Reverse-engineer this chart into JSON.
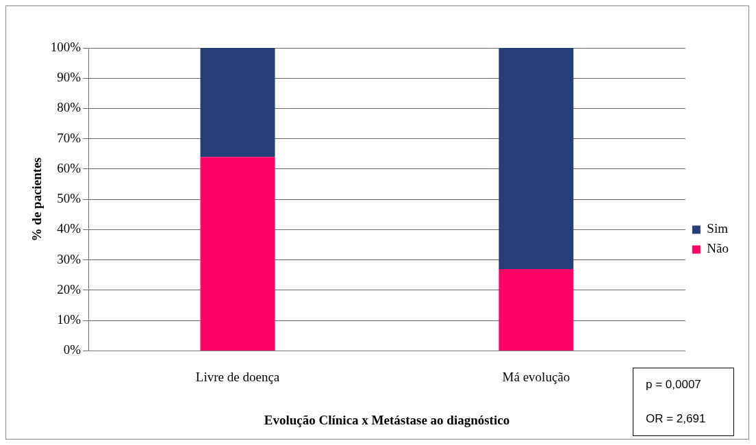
{
  "chart_data": {
    "type": "bar",
    "stacked": true,
    "xlabel": "Evolução Clínica x Metástase ao diagnóstico",
    "ylabel": "% de pacientes",
    "categories": [
      "Livre de doença",
      "Má evolução"
    ],
    "series": [
      {
        "name": "Não",
        "color": "#ff0066",
        "values": [
          64,
          27
        ]
      },
      {
        "name": "Sim",
        "color": "#243f77",
        "values": [
          36,
          73
        ]
      }
    ],
    "ylim": [
      0,
      100
    ],
    "yticks": [
      {
        "value": 0,
        "label": "0%"
      },
      {
        "value": 10,
        "label": "10%"
      },
      {
        "value": 20,
        "label": "20%"
      },
      {
        "value": 30,
        "label": "30%"
      },
      {
        "value": 40,
        "label": "40%"
      },
      {
        "value": 50,
        "label": "50%"
      },
      {
        "value": 60,
        "label": "60%"
      },
      {
        "value": 70,
        "label": "70%"
      },
      {
        "value": 80,
        "label": "80%"
      },
      {
        "value": 90,
        "label": "90%"
      },
      {
        "value": 100,
        "label": "100%"
      }
    ],
    "grid": "y",
    "legend": "right",
    "annotations": [
      "p = 0,0007",
      "OR = 2,691"
    ]
  }
}
